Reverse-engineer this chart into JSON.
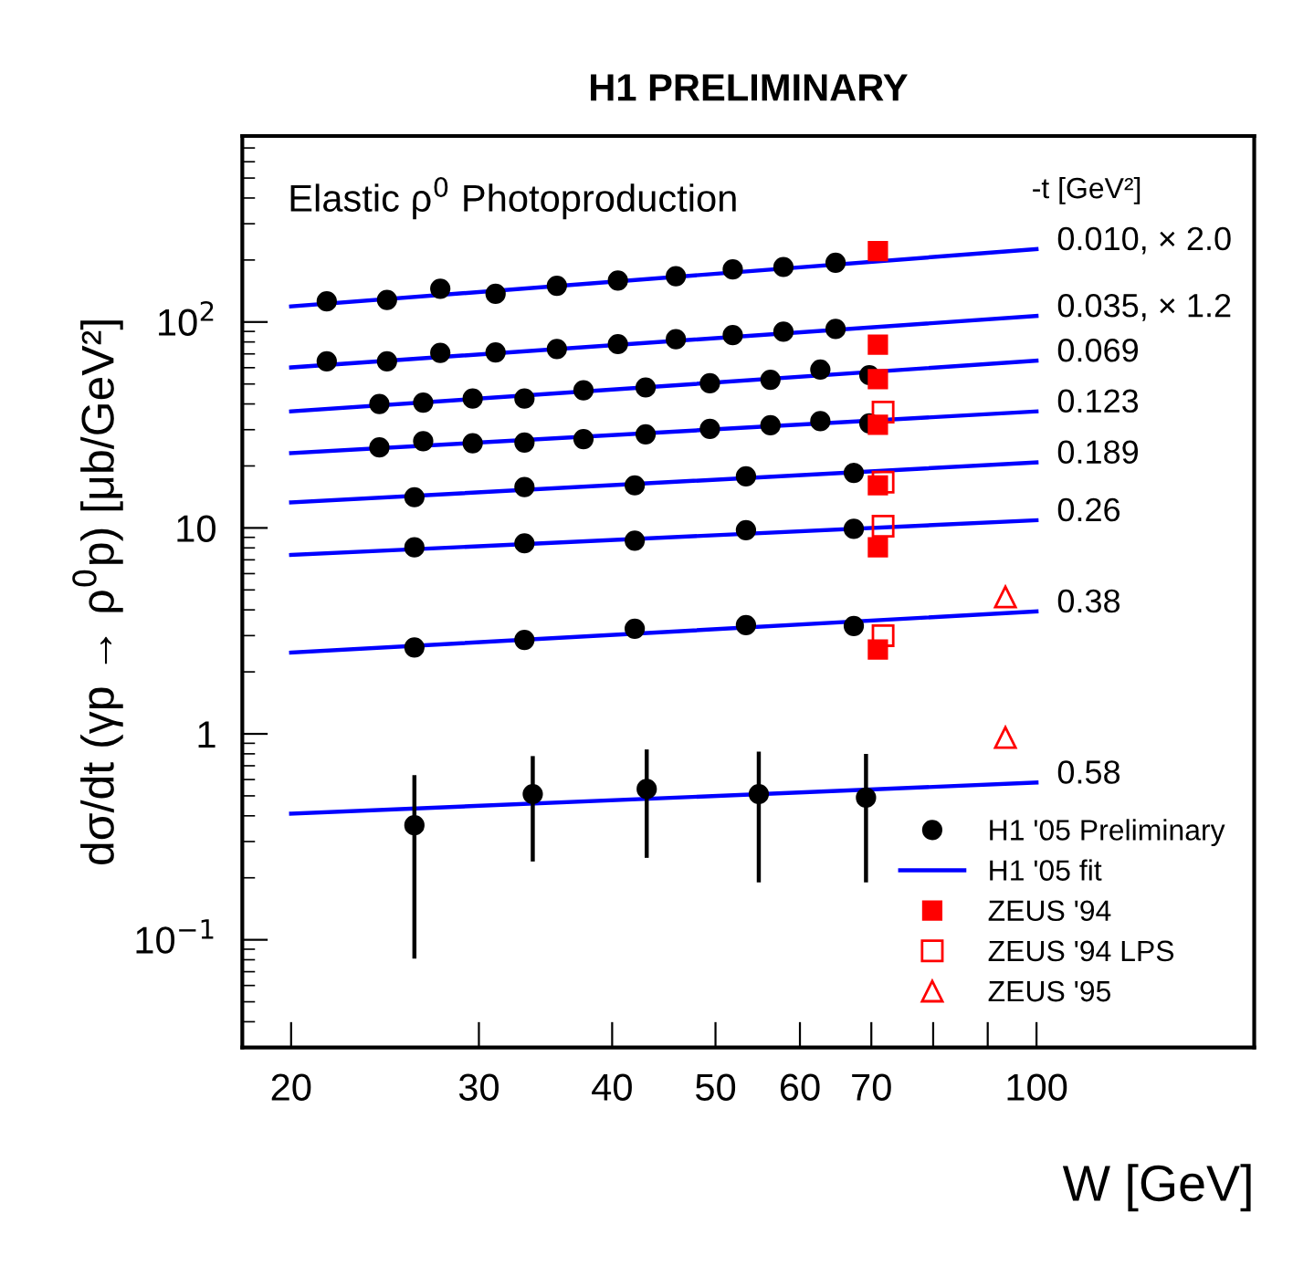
{
  "chart_data": {
    "type": "scatter",
    "title": "H1 PRELIMINARY",
    "xlabel": "W [GeV]",
    "ylabel": "dσ/dt (γp → ρ$^{0}$p) [μb/GeV²]",
    "log": "xy",
    "xlim": [
      18,
      160
    ],
    "ylim": [
      0.03,
      800
    ],
    "xticks": [
      20,
      30,
      40,
      50,
      60,
      70,
      {
        "value": 80,
        "label": null
      },
      {
        "value": 90,
        "label": null
      },
      100
    ],
    "yticks": [
      {
        "value": 0.1,
        "label": "10$^{−1}$"
      },
      1,
      10,
      {
        "value": 100,
        "label": "10$^{2}$"
      }
    ],
    "grid": false,
    "legend": "bottom right",
    "annotations": [
      "Elastic ρ$^{0}$ Photoproduction",
      "-t [GeV²]",
      "0.010, × 2.0",
      "0.035, × 1.2",
      "0.069",
      "0.123",
      "0.189",
      "0.26",
      "0.38",
      "0.58"
    ],
    "series": [
      {
        "name": "H1 '05 Preliminary",
        "marker": "circle",
        "color": "#000000",
        "x": [
          21.6,
          24.6,
          27.6,
          31.1,
          35.5,
          40.5,
          45.9,
          51.9,
          57.9,
          64.8,
          21.6,
          24.6,
          27.6,
          31.1,
          35.5,
          40.5,
          45.9,
          51.9,
          57.9,
          64.8,
          24.2,
          26.6,
          29.6,
          33.1,
          37.6,
          43.0,
          49.4,
          56.3,
          62.7,
          69.7,
          24.2,
          26.6,
          29.6,
          33.1,
          37.6,
          43.0,
          49.4,
          56.3,
          62.7,
          69.7,
          26.1,
          33.1,
          42.0,
          53.4,
          67.4,
          26.1,
          33.1,
          42.0,
          53.4,
          67.4,
          26.1,
          33.1,
          42.0,
          53.4,
          67.4,
          26.1,
          33.7,
          43.1,
          54.9,
          69.2
        ],
        "values": [
          126,
          128,
          145,
          137,
          150,
          159,
          167,
          180,
          185,
          194,
          64.4,
          64.4,
          70.8,
          71.2,
          74.0,
          78.1,
          82.5,
          86.3,
          89.7,
          92.5,
          40.0,
          40.6,
          42.5,
          42.5,
          46.6,
          48.1,
          50.4,
          52.4,
          58.7,
          55.2,
          24.6,
          26.4,
          25.8,
          26.0,
          27.0,
          28.5,
          30.3,
          31.5,
          33.0,
          32.2,
          14.1,
          15.8,
          16.1,
          17.8,
          18.5,
          8.05,
          8.42,
          8.68,
          9.76,
          9.9,
          2.63,
          2.86,
          3.24,
          3.37,
          3.34,
          0.36,
          0.51,
          0.54,
          0.51,
          0.49
        ],
        "errors": [
          null,
          null,
          null,
          null,
          null,
          null,
          null,
          null,
          null,
          null,
          null,
          null,
          null,
          null,
          null,
          null,
          null,
          null,
          null,
          null,
          null,
          null,
          null,
          null,
          null,
          null,
          null,
          null,
          null,
          null,
          null,
          null,
          null,
          null,
          null,
          null,
          null,
          null,
          null,
          null,
          null,
          null,
          null,
          null,
          null,
          null,
          null,
          null,
          null,
          null,
          null,
          null,
          null,
          null,
          null,
          [
            0.081,
            0.63
          ],
          [
            0.24,
            0.78
          ],
          [
            0.25,
            0.84
          ],
          [
            0.19,
            0.82
          ],
          [
            0.19,
            0.8
          ]
        ]
      },
      {
        "name": "H1 '05 fit",
        "type": "line",
        "marker": "none",
        "color": "#0000ff",
        "x": [
          20,
          100
        ],
        "values": [
          119,
          226
        ]
      },
      {
        "type": "line",
        "marker": "none",
        "color": "#0000ff",
        "x": [
          20,
          100
        ],
        "values": [
          60.2,
          107
        ]
      },
      {
        "type": "line",
        "marker": "none",
        "color": "#0000ff",
        "x": [
          20,
          100
        ],
        "values": [
          36.8,
          64.9
        ]
      },
      {
        "type": "line",
        "marker": "none",
        "color": "#0000ff",
        "x": [
          20,
          100
        ],
        "values": [
          23.1,
          36.8
        ]
      },
      {
        "type": "line",
        "marker": "none",
        "color": "#0000ff",
        "x": [
          20,
          100
        ],
        "values": [
          13.3,
          20.8
        ]
      },
      {
        "type": "line",
        "marker": "none",
        "color": "#0000ff",
        "x": [
          20,
          100
        ],
        "values": [
          7.39,
          10.9
        ]
      },
      {
        "type": "line",
        "marker": "none",
        "color": "#0000ff",
        "x": [
          20,
          100
        ],
        "values": [
          2.48,
          3.93
        ]
      },
      {
        "type": "line",
        "marker": "none",
        "color": "#0000ff",
        "x": [
          20,
          100
        ],
        "values": [
          0.41,
          0.58
        ]
      },
      {
        "name": "ZEUS '94",
        "marker": "square",
        "color": "#ff0000",
        "x": [
          71.0,
          71.0,
          71.0,
          71.0,
          71.0,
          71.0,
          71.0
        ],
        "values": [
          221,
          77.6,
          52.8,
          31.7,
          16.1,
          8.05,
          2.57
        ]
      },
      {
        "name": "ZEUS '94 LPS",
        "marker": "square",
        "color": "#ff0000",
        "x": [
          71.8,
          71.8,
          71.8,
          71.8
        ],
        "values": [
          36.5,
          16.7,
          10.2,
          3.0
        ]
      },
      {
        "name": "ZEUS '95",
        "marker": "triangle",
        "color": "#ff0000",
        "x": [
          93.5,
          93.5
        ],
        "values": [
          4.62,
          0.96
        ]
      }
    ]
  }
}
